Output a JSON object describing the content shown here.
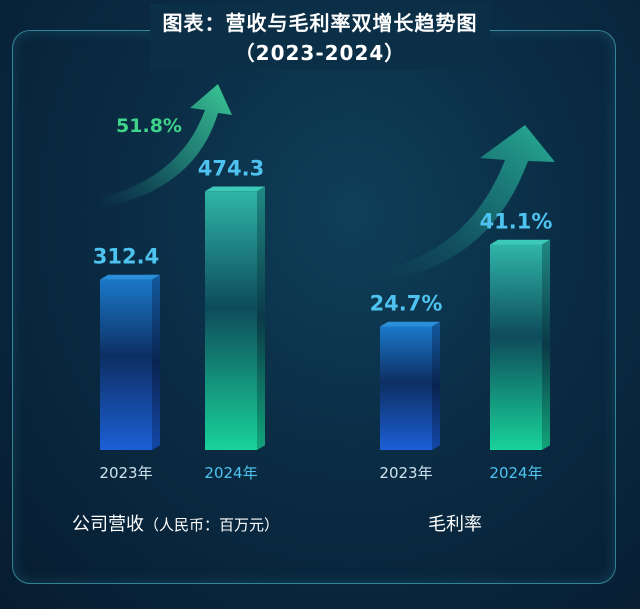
{
  "header": {
    "title": "图表：营收与毛利率双增长趋势图",
    "subtitle": "（2023-2024）"
  },
  "colors": {
    "bar_2023": "#1b6fc0",
    "bar_2024": "#1fb5a3",
    "value_text": "#4fc3ef",
    "growth_text": "#3ed48a",
    "background": "#0a2c44"
  },
  "groups": [
    {
      "label": "公司营收",
      "unit": "（人民币：百万元）",
      "growth_label": "51.8%"
    },
    {
      "label": "毛利率",
      "unit": "",
      "growth_label": ""
    }
  ],
  "chart_data": [
    {
      "type": "bar",
      "categories": [
        "2023年",
        "2024年"
      ],
      "values": [
        312.4,
        474.3
      ],
      "value_labels": [
        "312.4",
        "474.3"
      ],
      "ylim": [
        0,
        550
      ],
      "xlabel": "公司营收（人民币：百万元）",
      "annotations": [
        "51.8%"
      ]
    },
    {
      "type": "bar",
      "categories": [
        "2023年",
        "2024年"
      ],
      "values": [
        24.7,
        41.1
      ],
      "value_labels": [
        "24.7%",
        "41.1%"
      ],
      "ylim": [
        0,
        60
      ],
      "xlabel": "毛利率"
    }
  ]
}
